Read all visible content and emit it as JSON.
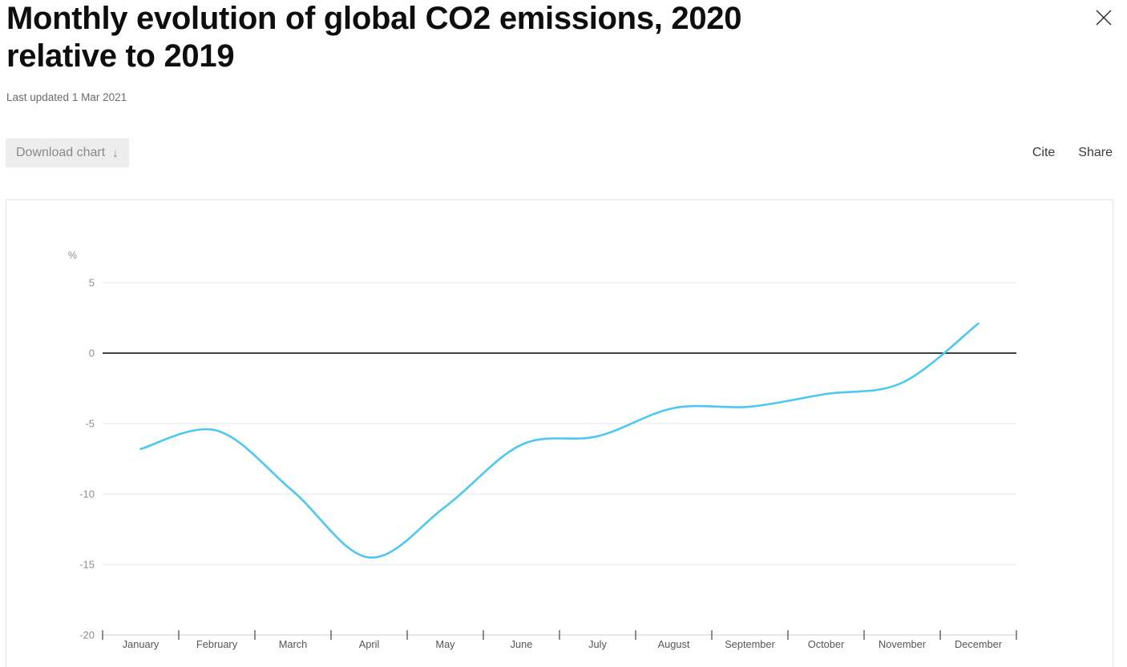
{
  "header": {
    "title": "Monthly evolution of global CO2 emissions, 2020\nrelative to 2019",
    "last_updated": "Last updated 1 Mar 2021"
  },
  "toolbar": {
    "download_label": "Download chart",
    "download_arrow": "↓",
    "cite_label": "Cite",
    "share_label": "Share"
  },
  "chart_data": {
    "type": "line",
    "title": "Monthly evolution of global CO2 emissions, 2020 relative to 2019",
    "unit_label": "%",
    "categories": [
      "January",
      "February",
      "March",
      "April",
      "May",
      "June",
      "July",
      "August",
      "September",
      "October",
      "November",
      "December"
    ],
    "values": [
      -6.8,
      -5.5,
      -9.8,
      -14.5,
      -10.9,
      -6.5,
      -5.9,
      -3.9,
      -3.8,
      -2.9,
      -2.1,
      2.1
    ],
    "yticks": [
      5,
      0,
      -5,
      -10,
      -15,
      -20
    ],
    "ylim": [
      -20,
      7
    ],
    "grid": true,
    "zero_line": true,
    "legend": "none",
    "line_color": "#4dc7f3"
  }
}
